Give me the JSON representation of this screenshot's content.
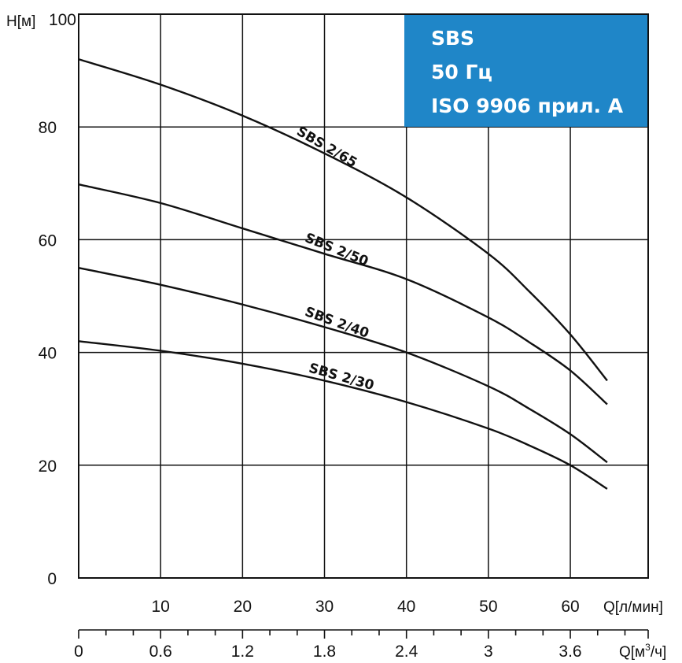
{
  "chart_data": {
    "type": "line",
    "y_axis": {
      "label": "H[м]",
      "ticks": [
        0,
        20,
        40,
        60,
        80,
        100
      ],
      "range": [
        0,
        100
      ],
      "grid": true
    },
    "x_axis_flow_lpm": {
      "label": "Q[л/мин]",
      "ticks": [
        10,
        20,
        30,
        40,
        50,
        60
      ],
      "range": [
        0,
        69.5
      ],
      "grid": true
    },
    "x_axis_flow_m3h": {
      "label_main": "Q[м",
      "label_sup": "3",
      "label_end": "/ч]",
      "ticks": [
        "0",
        "0.6",
        "1.2",
        "1.8",
        "2.4",
        "3",
        "3.6"
      ],
      "tick_values": [
        0,
        0.6,
        1.2,
        1.8,
        2.4,
        3.0,
        3.6
      ],
      "minor_step": 0.2,
      "range": [
        0,
        4.17
      ]
    },
    "legend_box": {
      "lines": [
        "SBS",
        "50 Гц",
        "ISO 9906 прил. A"
      ],
      "placement": "top-right",
      "background": "#1f86c8"
    },
    "series": [
      {
        "name": "SBS 2/65",
        "x": [
          0,
          10,
          20,
          30,
          40,
          50,
          55,
          60,
          64.5
        ],
        "y": [
          92,
          87.5,
          82,
          75.3,
          67.5,
          57.5,
          50.8,
          43.2,
          35
        ]
      },
      {
        "name": "SBS 2/50",
        "x": [
          0,
          10,
          20,
          30,
          40,
          50,
          55,
          60,
          64.5
        ],
        "y": [
          69.8,
          66.5,
          62,
          57.5,
          53,
          46.2,
          41.8,
          36.8,
          30.8
        ]
      },
      {
        "name": "SBS 2/40",
        "x": [
          0,
          10,
          20,
          30,
          40,
          50,
          55,
          60,
          64.5
        ],
        "y": [
          55,
          52,
          48.5,
          44.5,
          40,
          34,
          30,
          25.5,
          20.5
        ]
      },
      {
        "name": "SBS 2/30",
        "x": [
          0,
          10,
          20,
          30,
          40,
          50,
          55,
          60,
          64.5
        ],
        "y": [
          42,
          40.3,
          38,
          35,
          31.2,
          26.5,
          23.5,
          20,
          15.8
        ]
      }
    ]
  }
}
